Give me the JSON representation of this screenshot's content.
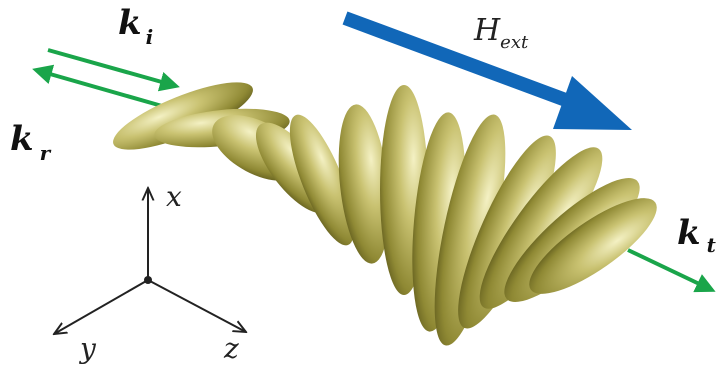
{
  "labels": {
    "k_incident": {
      "main": "k",
      "sub": "i"
    },
    "k_reflected": {
      "main": "k",
      "sub": "r"
    },
    "k_transmitted": {
      "main": "k",
      "sub": "t"
    },
    "h_ext": {
      "main": "H",
      "sub": "ext"
    }
  },
  "axes": {
    "x": "x",
    "y": "y",
    "z": "z"
  },
  "colors": {
    "wave_arrow": "#1aa54a",
    "field_arrow": "#1167b8",
    "ellipsoid_light": "#e7e3a0",
    "ellipsoid_mid": "#a9a246",
    "ellipsoid_dark": "#5c5719",
    "axis_line": "#222222"
  },
  "molecule_count": 13
}
